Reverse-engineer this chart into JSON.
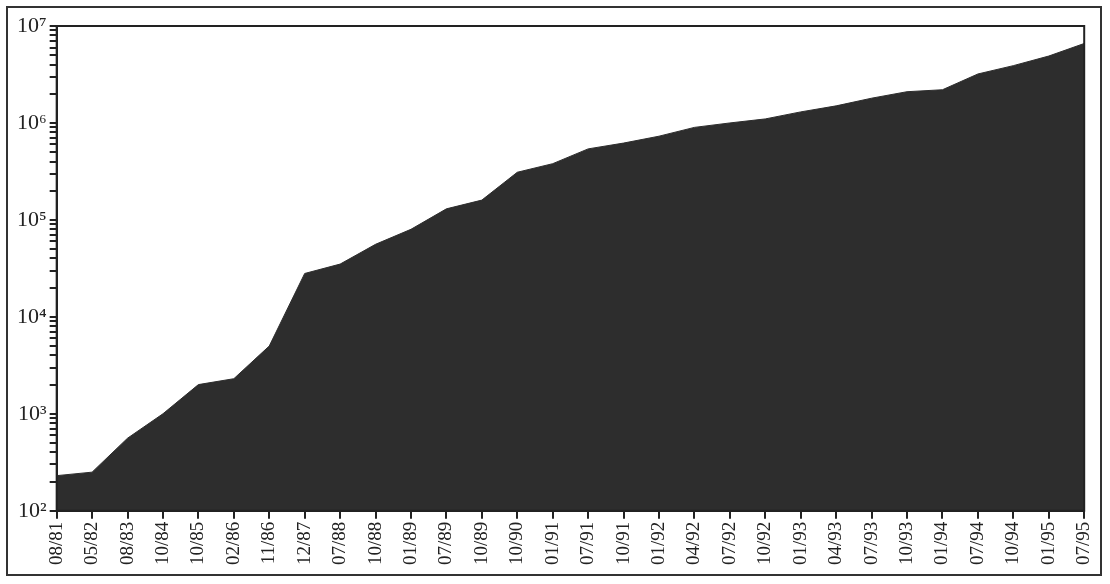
{
  "chart_data": {
    "type": "area",
    "log": "y",
    "categories": [
      "08/81",
      "05/82",
      "08/83",
      "10/84",
      "10/85",
      "02/86",
      "11/86",
      "12/87",
      "07/88",
      "10/88",
      "01/89",
      "07/89",
      "10/89",
      "10/90",
      "01/91",
      "07/91",
      "10/91",
      "01/92",
      "04/92",
      "07/92",
      "10/92",
      "01/93",
      "04/93",
      "07/93",
      "10/93",
      "01/94",
      "07/94",
      "10/94",
      "01/95",
      "07/95"
    ],
    "series": [
      {
        "color": "#2d2d2d",
        "values": [
          230,
          250,
          560,
          1000,
          2000,
          2300,
          5000,
          28000,
          35000,
          56000,
          80000,
          130000,
          160000,
          310000,
          380000,
          540000,
          620000,
          730000,
          900000,
          1000000,
          1100000,
          1300000,
          1500000,
          1800000,
          2100000,
          2200000,
          3200000,
          3900000,
          4900000,
          6600000
        ]
      }
    ],
    "ylim": [
      100,
      10000000
    ],
    "yticks": [
      {
        "value": 100,
        "label": "10²"
      },
      {
        "value": 200,
        "label": null
      },
      {
        "value": 300,
        "label": null
      },
      {
        "value": 400,
        "label": null
      },
      {
        "value": 500,
        "label": null
      },
      {
        "value": 600,
        "label": null
      },
      {
        "value": 700,
        "label": null
      },
      {
        "value": 800,
        "label": null
      },
      {
        "value": 900,
        "label": null
      },
      {
        "value": 1000,
        "label": "10³"
      },
      {
        "value": 2000,
        "label": null
      },
      {
        "value": 3000,
        "label": null
      },
      {
        "value": 4000,
        "label": null
      },
      {
        "value": 5000,
        "label": null
      },
      {
        "value": 6000,
        "label": null
      },
      {
        "value": 7000,
        "label": null
      },
      {
        "value": 8000,
        "label": null
      },
      {
        "value": 9000,
        "label": null
      },
      {
        "value": 10000,
        "label": "10⁴"
      },
      {
        "value": 20000,
        "label": null
      },
      {
        "value": 30000,
        "label": null
      },
      {
        "value": 40000,
        "label": null
      },
      {
        "value": 50000,
        "label": null
      },
      {
        "value": 60000,
        "label": null
      },
      {
        "value": 70000,
        "label": null
      },
      {
        "value": 80000,
        "label": null
      },
      {
        "value": 90000,
        "label": null
      },
      {
        "value": 100000,
        "label": "10⁵"
      },
      {
        "value": 200000,
        "label": null
      },
      {
        "value": 300000,
        "label": null
      },
      {
        "value": 400000,
        "label": null
      },
      {
        "value": 500000,
        "label": null
      },
      {
        "value": 600000,
        "label": null
      },
      {
        "value": 700000,
        "label": null
      },
      {
        "value": 800000,
        "label": null
      },
      {
        "value": 900000,
        "label": null
      },
      {
        "value": 1000000,
        "label": "10⁶"
      },
      {
        "value": 2000000,
        "label": null
      },
      {
        "value": 3000000,
        "label": null
      },
      {
        "value": 4000000,
        "label": null
      },
      {
        "value": 5000000,
        "label": null
      },
      {
        "value": 6000000,
        "label": null
      },
      {
        "value": 7000000,
        "label": null
      },
      {
        "value": 8000000,
        "label": null
      },
      {
        "value": 9000000,
        "label": null
      },
      {
        "value": 10000000,
        "label": "10⁷"
      }
    ],
    "grid": false,
    "legend": false,
    "marker": "none"
  }
}
